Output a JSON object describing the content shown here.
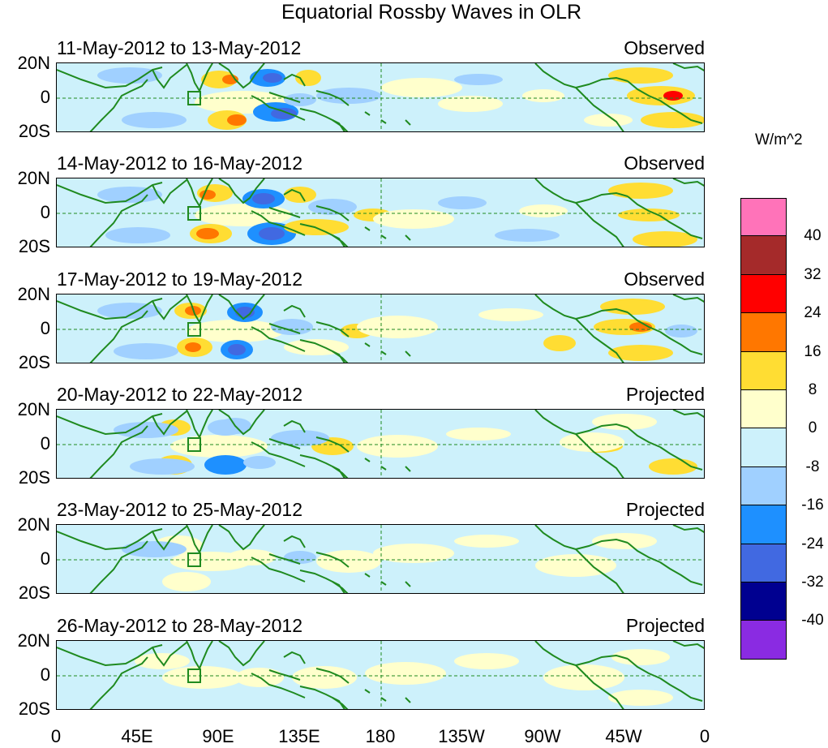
{
  "title": "Equatorial Rossby Waves in OLR",
  "panels": [
    {
      "dates": "11-May-2012 to 13-May-2012",
      "mode": "Observed"
    },
    {
      "dates": "14-May-2012 to 16-May-2012",
      "mode": "Observed"
    },
    {
      "dates": "17-May-2012 to 19-May-2012",
      "mode": "Observed"
    },
    {
      "dates": "20-May-2012 to 22-May-2012",
      "mode": "Projected"
    },
    {
      "dates": "23-May-2012 to 25-May-2012",
      "mode": "Projected"
    },
    {
      "dates": "26-May-2012 to 28-May-2012",
      "mode": "Projected"
    }
  ],
  "lat_labels": {
    "north": "20N",
    "equator": "0",
    "south": "20S"
  },
  "lon_labels": [
    "0",
    "45E",
    "90E",
    "135E",
    "180",
    "135W",
    "90W",
    "45W",
    "0"
  ],
  "colorbar": {
    "units": "W/m^2",
    "labels": [
      "40",
      "32",
      "24",
      "16",
      "8",
      "0",
      "-8",
      "-16",
      "-24",
      "-32",
      "-40"
    ],
    "colors": [
      "#ff73b9",
      "#a52a2a",
      "#ff0000",
      "#ff7700",
      "#ffdd33",
      "#ffffcc",
      "#cdf1fb",
      "#a0d0ff",
      "#1e90ff",
      "#4169e1",
      "#000090",
      "#8a2be2"
    ]
  },
  "palette": {
    "coast": "#1f8a1f",
    "grid": "#1f8a1f"
  }
}
